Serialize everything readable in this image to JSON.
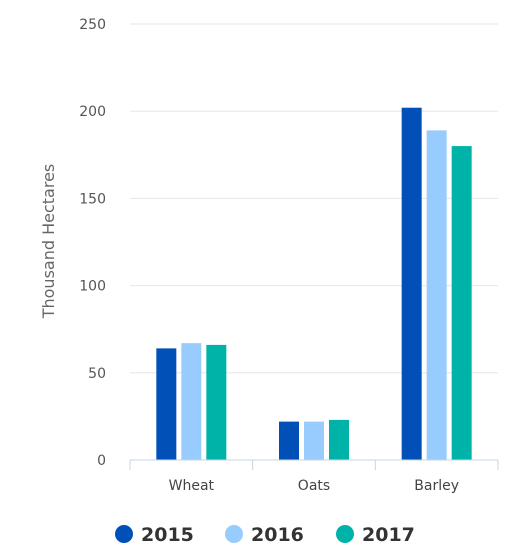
{
  "chart_data": {
    "type": "bar",
    "title": "",
    "xlabel": "",
    "ylabel": "Thousand Hectares",
    "ylim": [
      0,
      250
    ],
    "yticks": [
      0,
      50,
      100,
      150,
      200,
      250
    ],
    "categories": [
      "Wheat",
      "Oats",
      "Barley"
    ],
    "series": [
      {
        "name": "2015",
        "color": "#0050b8",
        "values": [
          64,
          22,
          202
        ]
      },
      {
        "name": "2016",
        "color": "#99ccfe",
        "values": [
          67,
          22,
          189
        ]
      },
      {
        "name": "2017",
        "color": "#00b3a9",
        "values": [
          66,
          23,
          180
        ]
      }
    ],
    "grid": true,
    "legend": "bottom-center"
  }
}
